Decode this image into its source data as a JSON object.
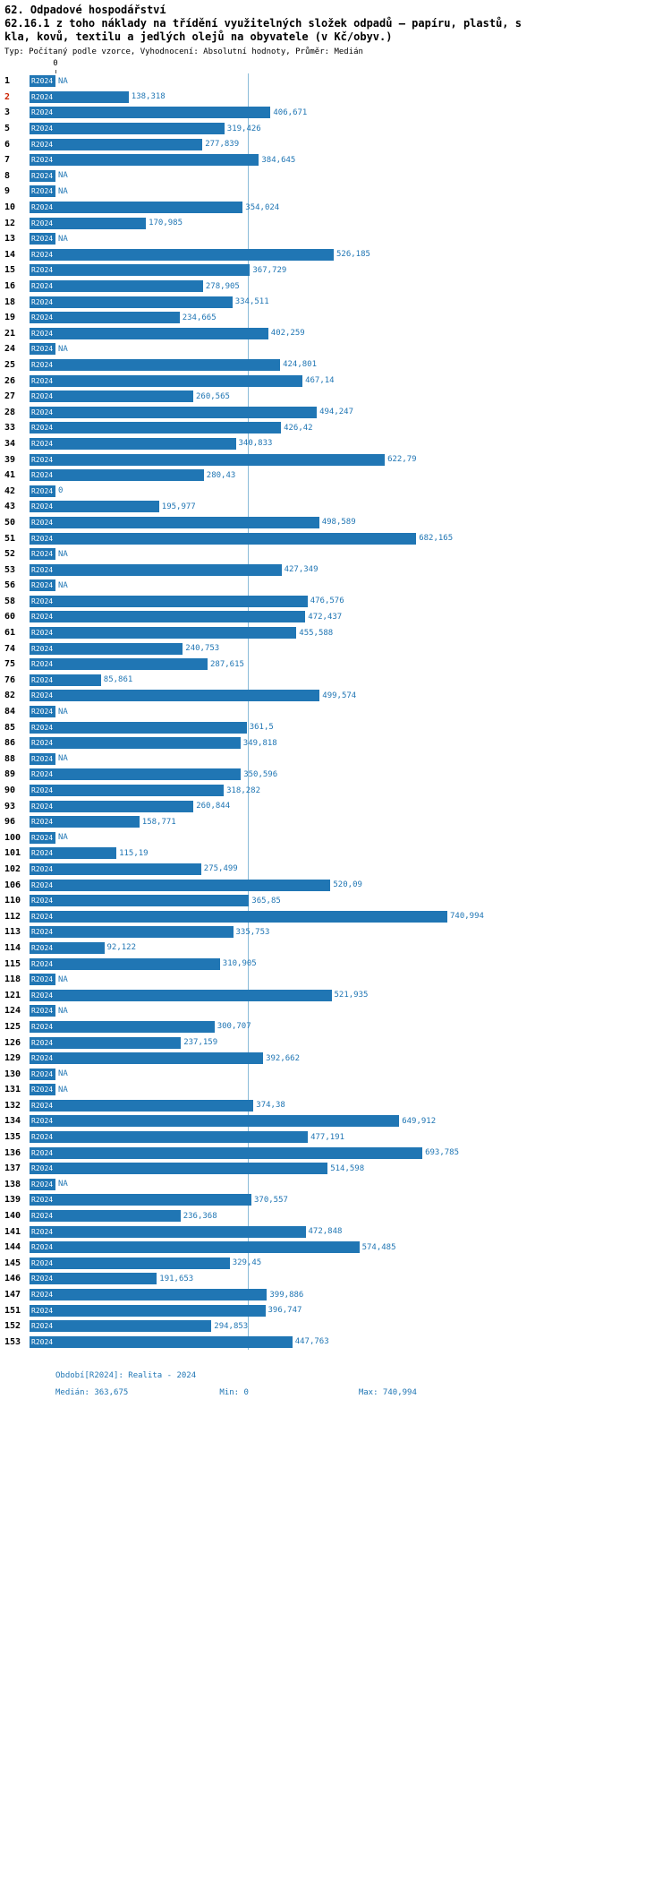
{
  "header": {
    "title": "62. Odpadové hospodářství",
    "subtitle": "62.16.1 z toho náklady na třídění využitelných složek odpadů – papíru, plastů, skla, kovů, textilu a jedlých olejů na obyvatele (v Kč/obyv.)",
    "meta": "Typ: Počítaný podle vzorce, Vyhodnocení: Absolutní hodnoty, Průměr: Medián"
  },
  "chart_data": {
    "type": "bar",
    "orientation": "horizontal",
    "series_name": "R2024",
    "axis_zero_label": "0",
    "xlim": [
      0,
      740.994
    ],
    "median": 363.675,
    "median_line": true,
    "na_text": "NA",
    "rows": [
      {
        "category": "1",
        "value": null,
        "label": "NA"
      },
      {
        "category": "2",
        "value": 138.318,
        "label": "138,318",
        "highlight": true
      },
      {
        "category": "3",
        "value": 406.671,
        "label": "406,671"
      },
      {
        "category": "5",
        "value": 319.426,
        "label": "319,426"
      },
      {
        "category": "6",
        "value": 277.839,
        "label": "277,839"
      },
      {
        "category": "7",
        "value": 384.645,
        "label": "384,645"
      },
      {
        "category": "8",
        "value": null,
        "label": "NA"
      },
      {
        "category": "9",
        "value": null,
        "label": "NA"
      },
      {
        "category": "10",
        "value": 354.024,
        "label": "354,024"
      },
      {
        "category": "12",
        "value": 170.985,
        "label": "170,985"
      },
      {
        "category": "13",
        "value": null,
        "label": "NA"
      },
      {
        "category": "14",
        "value": 526.185,
        "label": "526,185"
      },
      {
        "category": "15",
        "value": 367.729,
        "label": "367,729"
      },
      {
        "category": "16",
        "value": 278.905,
        "label": "278,905"
      },
      {
        "category": "18",
        "value": 334.511,
        "label": "334,511"
      },
      {
        "category": "19",
        "value": 234.665,
        "label": "234,665"
      },
      {
        "category": "21",
        "value": 402.259,
        "label": "402,259"
      },
      {
        "category": "24",
        "value": null,
        "label": "NA"
      },
      {
        "category": "25",
        "value": 424.801,
        "label": "424,801"
      },
      {
        "category": "26",
        "value": 467.14,
        "label": "467,14"
      },
      {
        "category": "27",
        "value": 260.565,
        "label": "260,565"
      },
      {
        "category": "28",
        "value": 494.247,
        "label": "494,247"
      },
      {
        "category": "33",
        "value": 426.42,
        "label": "426,42"
      },
      {
        "category": "34",
        "value": 340.833,
        "label": "340,833"
      },
      {
        "category": "39",
        "value": 622.79,
        "label": "622,79"
      },
      {
        "category": "41",
        "value": 280.43,
        "label": "280,43"
      },
      {
        "category": "42",
        "value": 0,
        "label": "0"
      },
      {
        "category": "43",
        "value": 195.977,
        "label": "195,977"
      },
      {
        "category": "50",
        "value": 498.589,
        "label": "498,589"
      },
      {
        "category": "51",
        "value": 682.165,
        "label": "682,165"
      },
      {
        "category": "52",
        "value": null,
        "label": "NA"
      },
      {
        "category": "53",
        "value": 427.349,
        "label": "427,349"
      },
      {
        "category": "56",
        "value": null,
        "label": "NA"
      },
      {
        "category": "58",
        "value": 476.576,
        "label": "476,576"
      },
      {
        "category": "60",
        "value": 472.437,
        "label": "472,437"
      },
      {
        "category": "61",
        "value": 455.588,
        "label": "455,588"
      },
      {
        "category": "74",
        "value": 240.753,
        "label": "240,753"
      },
      {
        "category": "75",
        "value": 287.615,
        "label": "287,615"
      },
      {
        "category": "76",
        "value": 85.861,
        "label": "85,861"
      },
      {
        "category": "82",
        "value": 499.574,
        "label": "499,574"
      },
      {
        "category": "84",
        "value": null,
        "label": "NA"
      },
      {
        "category": "85",
        "value": 361.5,
        "label": "361,5"
      },
      {
        "category": "86",
        "value": 349.818,
        "label": "349,818"
      },
      {
        "category": "88",
        "value": null,
        "label": "NA"
      },
      {
        "category": "89",
        "value": 350.596,
        "label": "350,596"
      },
      {
        "category": "90",
        "value": 318.282,
        "label": "318,282"
      },
      {
        "category": "93",
        "value": 260.844,
        "label": "260,844"
      },
      {
        "category": "96",
        "value": 158.771,
        "label": "158,771"
      },
      {
        "category": "100",
        "value": null,
        "label": "NA"
      },
      {
        "category": "101",
        "value": 115.19,
        "label": "115,19"
      },
      {
        "category": "102",
        "value": 275.499,
        "label": "275,499"
      },
      {
        "category": "106",
        "value": 520.09,
        "label": "520,09"
      },
      {
        "category": "110",
        "value": 365.85,
        "label": "365,85"
      },
      {
        "category": "112",
        "value": 740.994,
        "label": "740,994"
      },
      {
        "category": "113",
        "value": 335.753,
        "label": "335,753"
      },
      {
        "category": "114",
        "value": 92.122,
        "label": "92,122"
      },
      {
        "category": "115",
        "value": 310.905,
        "label": "310,905"
      },
      {
        "category": "118",
        "value": null,
        "label": "NA"
      },
      {
        "category": "121",
        "value": 521.935,
        "label": "521,935"
      },
      {
        "category": "124",
        "value": null,
        "label": "NA"
      },
      {
        "category": "125",
        "value": 300.707,
        "label": "300,707"
      },
      {
        "category": "126",
        "value": 237.159,
        "label": "237,159"
      },
      {
        "category": "129",
        "value": 392.662,
        "label": "392,662"
      },
      {
        "category": "130",
        "value": null,
        "label": "NA"
      },
      {
        "category": "131",
        "value": null,
        "label": "NA"
      },
      {
        "category": "132",
        "value": 374.38,
        "label": "374,38"
      },
      {
        "category": "134",
        "value": 649.912,
        "label": "649,912"
      },
      {
        "category": "135",
        "value": 477.191,
        "label": "477,191"
      },
      {
        "category": "136",
        "value": 693.785,
        "label": "693,785"
      },
      {
        "category": "137",
        "value": 514.598,
        "label": "514,598"
      },
      {
        "category": "138",
        "value": null,
        "label": "NA"
      },
      {
        "category": "139",
        "value": 370.557,
        "label": "370,557"
      },
      {
        "category": "140",
        "value": 236.368,
        "label": "236,368"
      },
      {
        "category": "141",
        "value": 472.848,
        "label": "472,848"
      },
      {
        "category": "144",
        "value": 574.485,
        "label": "574,485"
      },
      {
        "category": "145",
        "value": 329.45,
        "label": "329,45"
      },
      {
        "category": "146",
        "value": 191.653,
        "label": "191,653"
      },
      {
        "category": "147",
        "value": 399.886,
        "label": "399,886"
      },
      {
        "category": "151",
        "value": 396.747,
        "label": "396,747"
      },
      {
        "category": "152",
        "value": 294.853,
        "label": "294,853"
      },
      {
        "category": "153",
        "value": 447.763,
        "label": "447,763"
      }
    ]
  },
  "footer": {
    "period": "Období[R2024]: Realita - 2024",
    "median": "Medián: 363,675",
    "min": "Min: 0",
    "max": "Max: 740,994"
  },
  "colors": {
    "bar": "#2076b4",
    "value_text": "#2076b4",
    "median_line": "#8bbcd9",
    "row_highlight": "#cc2200"
  }
}
